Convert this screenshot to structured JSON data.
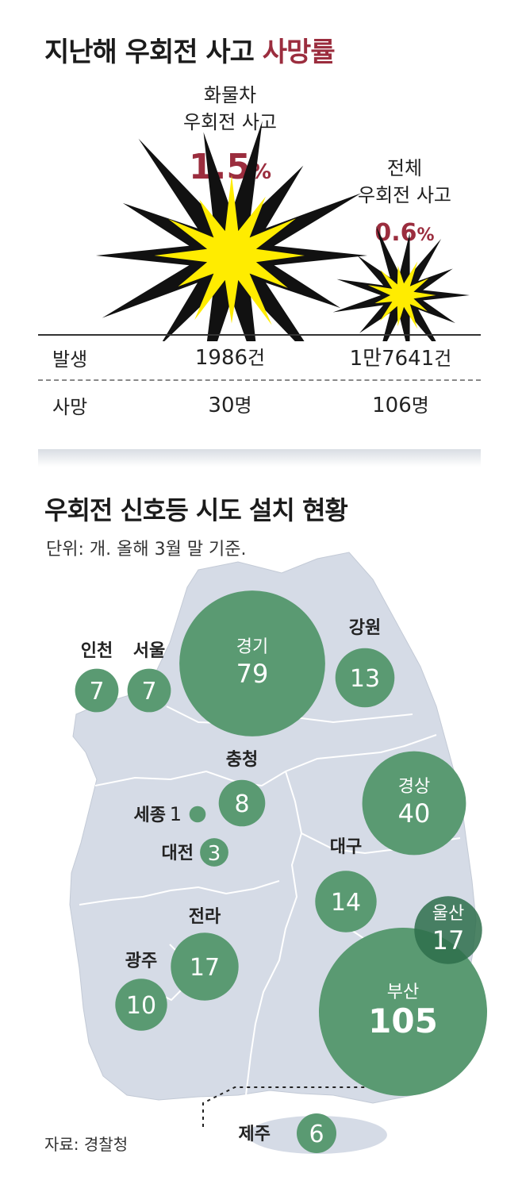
{
  "top": {
    "title_main": "지난해 우회전 사고 ",
    "title_highlight": "사망률",
    "truck": {
      "label_line1": "화물차",
      "label_line2": "우회전 사고",
      "rate_value": "1.5",
      "rate_unit": "%"
    },
    "total": {
      "label_line1": "전체",
      "label_line2": "우회전 사고",
      "rate_value": "0.6",
      "rate_unit": "%"
    },
    "rows": {
      "occurrence_label": "발생",
      "death_label": "사망",
      "truck_occurrence": "1986",
      "truck_occurrence_unit": "건",
      "total_occurrence": "1만7641",
      "total_occurrence_unit": "건",
      "truck_death": "30",
      "truck_death_unit": "명",
      "total_death": "106",
      "total_death_unit": "명"
    }
  },
  "map": {
    "title": "우회전 신호등 시도 설치 현황",
    "subtitle": "단위: 개. 올해 3월 말 기준.",
    "source": "자료: 경찰청"
  },
  "chart_data": [
    {
      "type": "table",
      "columns": [
        "",
        "화물차 우회전 사고",
        "전체 우회전 사고"
      ],
      "rates_percent": [
        1.5,
        0.6
      ],
      "rows": [
        {
          "label": "발생",
          "values": [
            1986,
            17641
          ],
          "unit": "건"
        },
        {
          "label": "사망",
          "values": [
            30,
            106
          ],
          "unit": "명"
        }
      ],
      "title": "지난해 우회전 사고 사망률"
    },
    {
      "type": "scatter",
      "title": "우회전 신호등 시도 설치 현황",
      "unit": "개",
      "regions": [
        {
          "name": "인천",
          "value": 7
        },
        {
          "name": "서울",
          "value": 7
        },
        {
          "name": "경기",
          "value": 79
        },
        {
          "name": "강원",
          "value": 13
        },
        {
          "name": "충청",
          "value": 8
        },
        {
          "name": "세종",
          "value": 1
        },
        {
          "name": "대전",
          "value": 3
        },
        {
          "name": "경상",
          "value": 40
        },
        {
          "name": "대구",
          "value": 14
        },
        {
          "name": "울산",
          "value": 17
        },
        {
          "name": "전라",
          "value": 17
        },
        {
          "name": "광주",
          "value": 10
        },
        {
          "name": "부산",
          "value": 105
        },
        {
          "name": "제주",
          "value": 6
        }
      ],
      "colors": {
        "bubble": "#5a9a72",
        "bubble_dark": "#2e6f4b",
        "map": "#d5dbe6"
      }
    }
  ]
}
